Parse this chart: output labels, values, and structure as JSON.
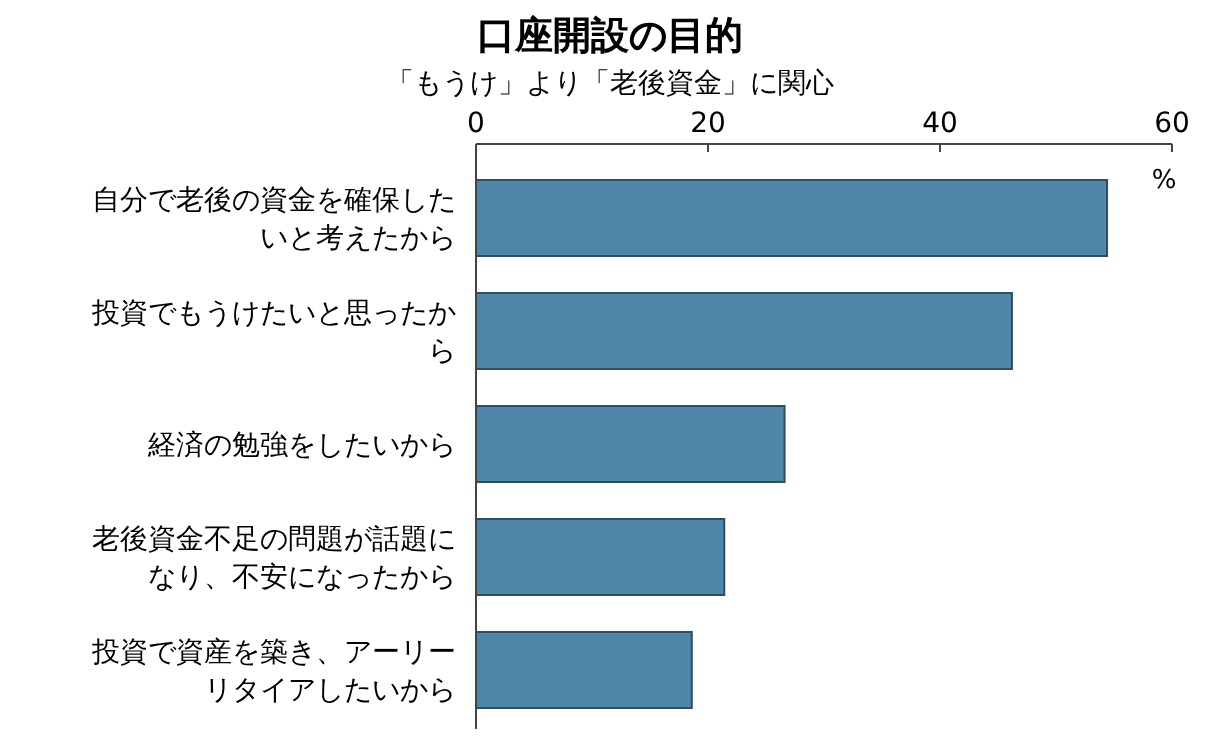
{
  "chart_data": {
    "type": "bar",
    "orientation": "horizontal",
    "title": "口座開設の目的",
    "subtitle": "「もうけ」より「老後資金」に関心",
    "xlabel": "%",
    "categories": [
      "自分で老後の資金を確保したいと考えたから",
      "投資でもうけたいと思ったから",
      "経済の勉強をしたいから",
      "老後資金不足の問題が話題になり、不安になったから",
      "投資で資産を築き、アーリーリタイアしたいから"
    ],
    "values": [
      54.4,
      46.2,
      26.6,
      21.4,
      18.6
    ],
    "color": "#4f87ab",
    "xlim": [
      0,
      60
    ],
    "xticks": [
      0,
      20,
      40,
      60
    ],
    "grid": false
  }
}
